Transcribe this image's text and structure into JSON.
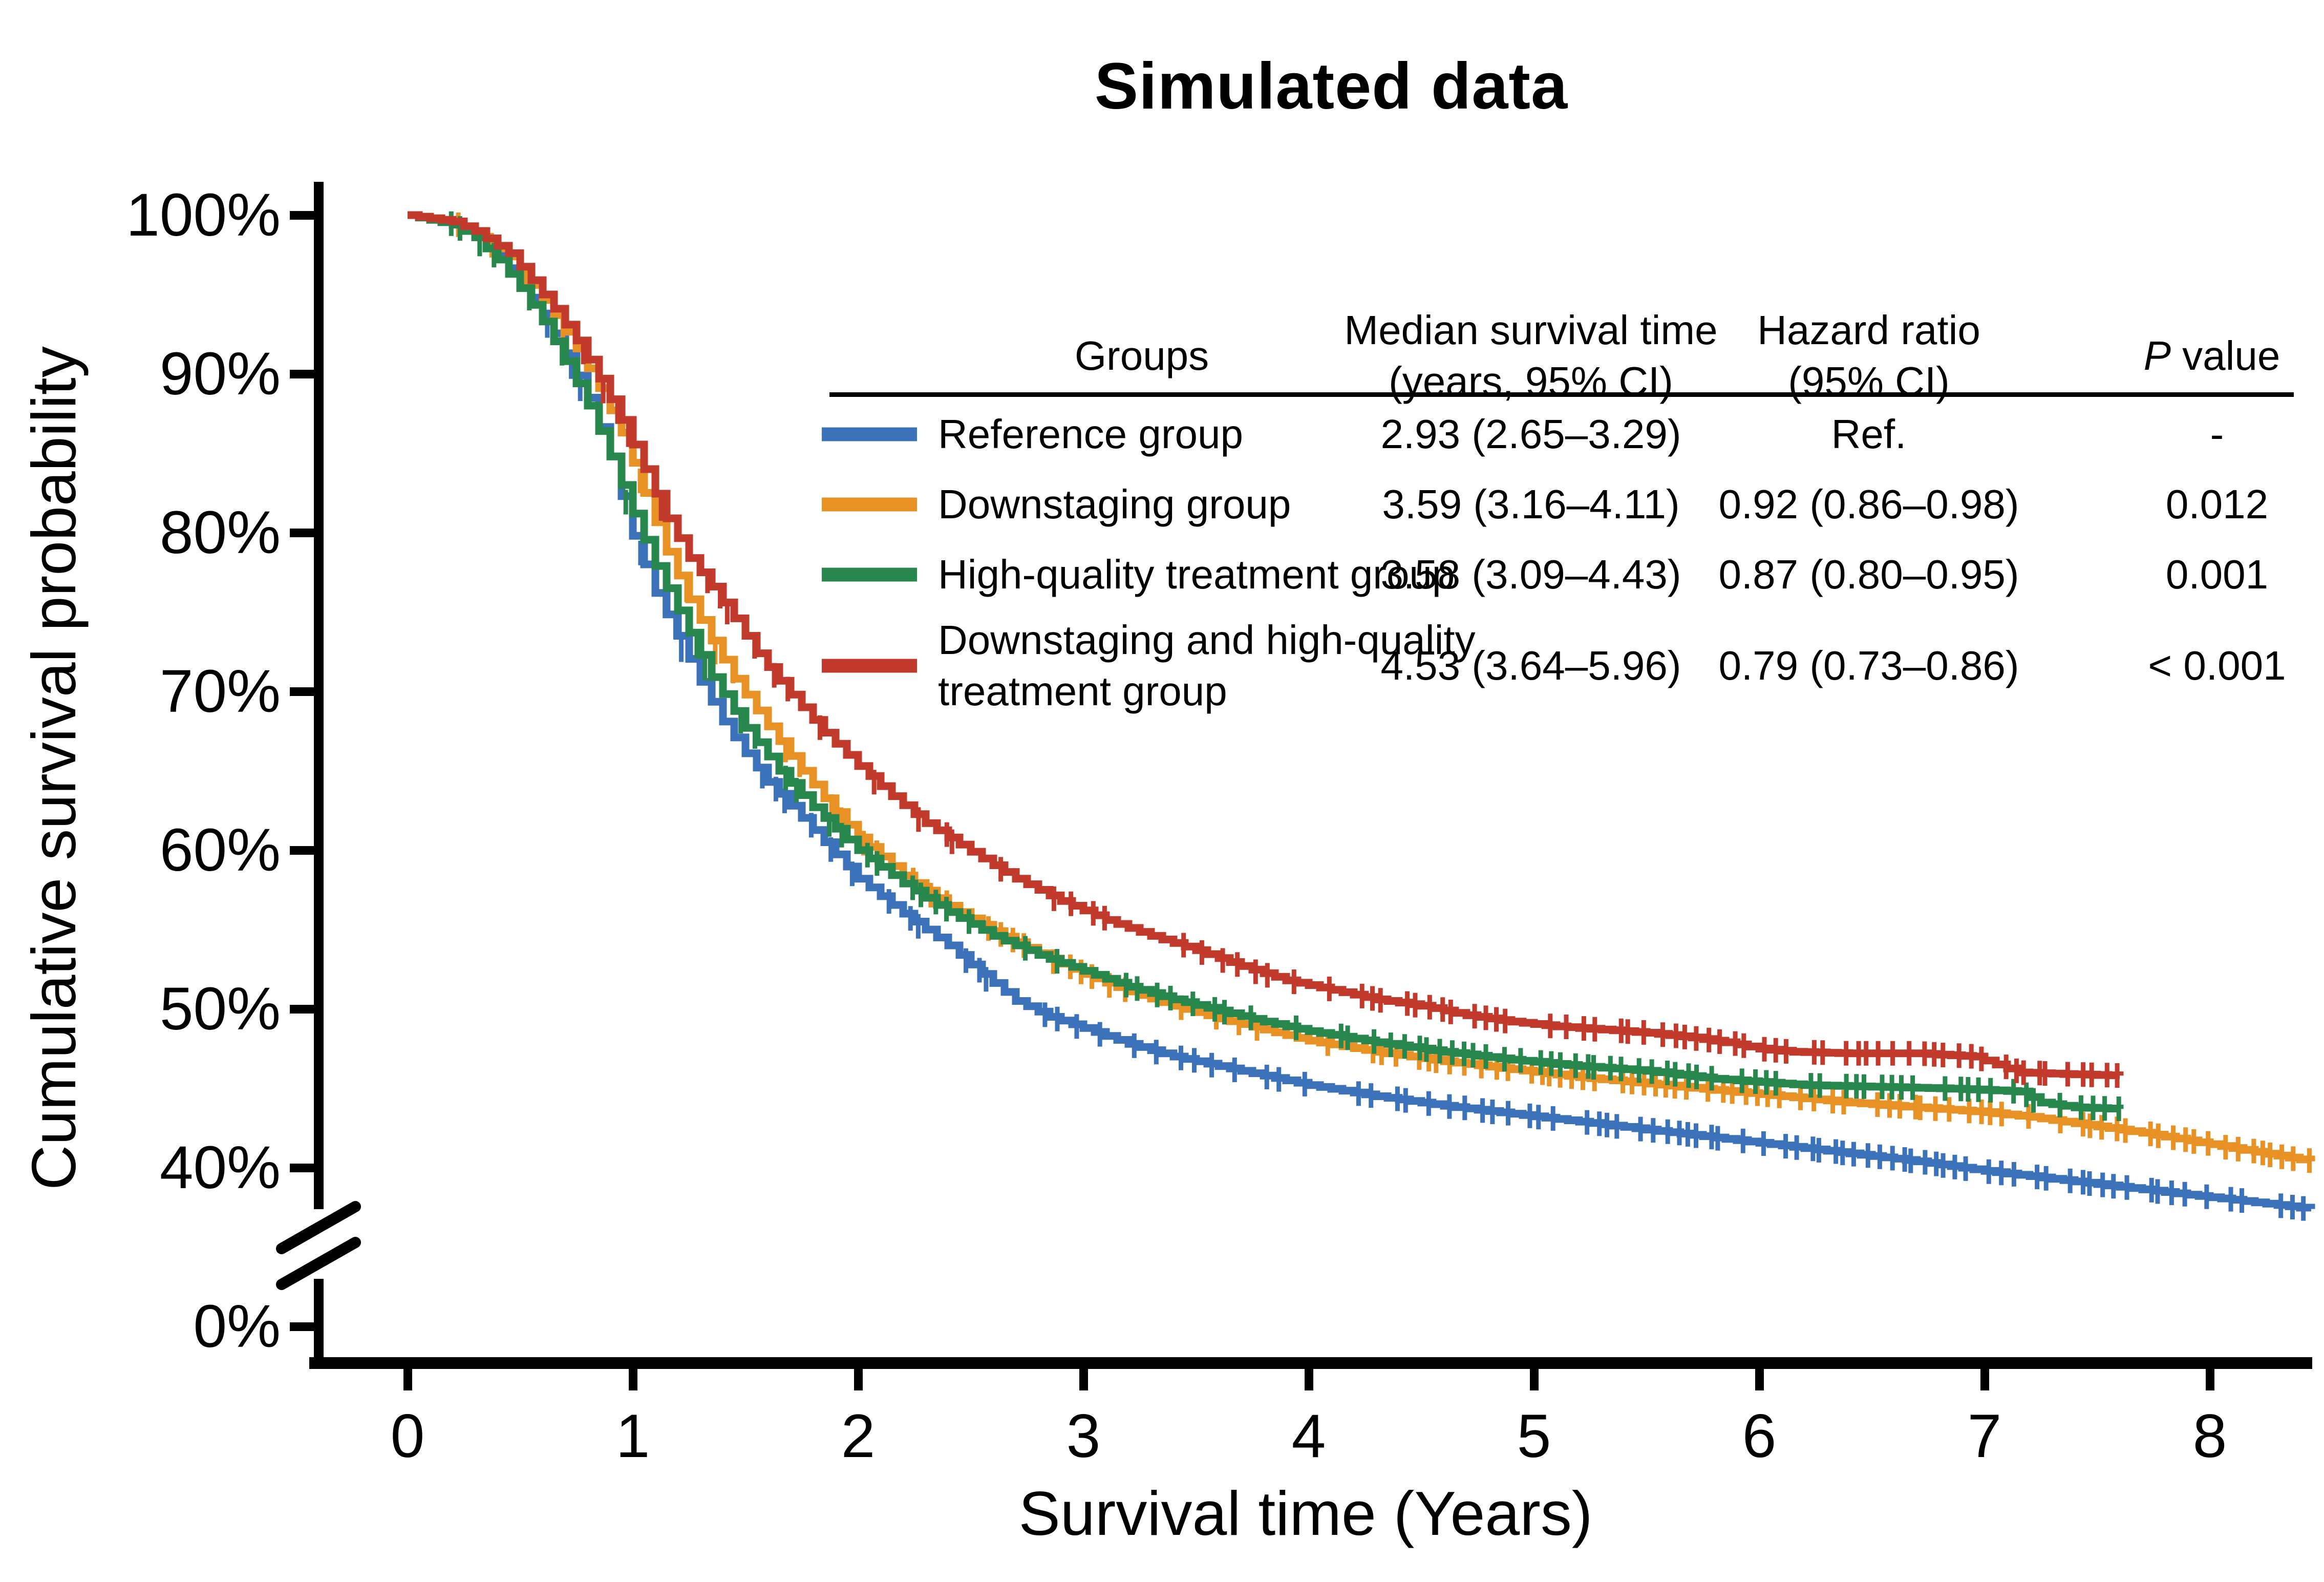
{
  "title": "Simulated data",
  "axes": {
    "x_label": "Survival time (Years)",
    "y_label": "Cumulative survival probability",
    "x_tick_labels": [
      "0",
      "1",
      "2",
      "3",
      "4",
      "5",
      "6",
      "7",
      "8"
    ],
    "y_tick_labels": [
      "100%",
      "90%",
      "80%",
      "70%",
      "60%",
      "50%",
      "40%"
    ],
    "y_zero_label": "0%"
  },
  "table": {
    "headers": {
      "groups": "Groups",
      "median_line1": "Median survival time",
      "median_line2": "(years, 95% CI)",
      "hazard_line1": "Hazard ratio",
      "hazard_line2": "(95% CI)",
      "p_italic": "P",
      "p_rest": " value"
    },
    "rows": [
      {
        "group": "Reference group",
        "median": "2.93 (2.65–3.29)",
        "hazard": "Ref.",
        "p": "-",
        "color": "#3B72B9"
      },
      {
        "group": "Downstaging group",
        "median": "3.59 (3.16–4.11)",
        "hazard": "0.92 (0.86–0.98)",
        "p": "0.012",
        "color": "#E89125"
      },
      {
        "group": "High-quality treatment group",
        "median": "3.58 (3.09–4.43)",
        "hazard": "0.87 (0.80–0.95)",
        "p": "0.001",
        "color": "#27874D"
      },
      {
        "group": "Downstaging and high-quality treatment group",
        "median": "4.53 (3.64–5.96)",
        "hazard": "0.79 (0.73–0.86)",
        "p": "< 0.001",
        "color": "#C13A2B"
      }
    ]
  },
  "chart_data": {
    "type": "line",
    "subtype": "kaplan_meier_step",
    "title": "Simulated data",
    "xlabel": "Survival time (Years)",
    "ylabel": "Cumulative survival probability",
    "xlim": [
      0,
      8.5
    ],
    "ylim": [
      0,
      100
    ],
    "y_axis_break_between": [
      0,
      37
    ],
    "grid": false,
    "legend_position": "table-top-right",
    "censor_marks": true,
    "x_ticks": [
      0,
      1,
      2,
      3,
      4,
      5,
      6,
      7,
      8
    ],
    "y_ticks_pct": [
      100,
      90,
      80,
      70,
      60,
      50,
      40,
      0
    ],
    "series": [
      {
        "name": "Reference group",
        "color": "#3B72B9",
        "median_years": "2.93 (2.65–3.29)",
        "hazard_ratio": "Ref.",
        "p_value": "-",
        "points": [
          [
            0,
            100
          ],
          [
            0.2,
            99.5
          ],
          [
            0.3,
            98.8
          ],
          [
            0.4,
            97.5
          ],
          [
            0.5,
            95.8
          ],
          [
            0.6,
            93.8
          ],
          [
            0.7,
            91.3
          ],
          [
            0.8,
            88.5
          ],
          [
            0.9,
            84.8
          ],
          [
            1.0,
            79.8
          ],
          [
            1.1,
            76.2
          ],
          [
            1.2,
            73.5
          ],
          [
            1.3,
            70.6
          ],
          [
            1.4,
            68.1
          ],
          [
            1.5,
            66.1
          ],
          [
            1.6,
            64.3
          ],
          [
            1.7,
            62.8
          ],
          [
            1.85,
            60.5
          ],
          [
            2.0,
            58.2
          ],
          [
            2.2,
            56.0
          ],
          [
            2.4,
            54.0
          ],
          [
            2.55,
            52.2
          ],
          [
            2.7,
            50.5
          ],
          [
            2.85,
            49.5
          ],
          [
            3.0,
            48.8
          ],
          [
            3.2,
            47.8
          ],
          [
            3.4,
            47.0
          ],
          [
            3.6,
            46.4
          ],
          [
            3.8,
            45.8
          ],
          [
            4.0,
            45.2
          ],
          [
            4.3,
            44.5
          ],
          [
            4.6,
            43.9
          ],
          [
            4.9,
            43.4
          ],
          [
            5.2,
            42.9
          ],
          [
            5.5,
            42.4
          ],
          [
            5.8,
            41.9
          ],
          [
            6.1,
            41.4
          ],
          [
            6.4,
            40.9
          ],
          [
            6.7,
            40.4
          ],
          [
            7.0,
            39.8
          ],
          [
            7.3,
            39.3
          ],
          [
            7.6,
            38.8
          ],
          [
            7.9,
            38.3
          ],
          [
            8.15,
            37.9
          ],
          [
            8.45,
            37.4
          ]
        ]
      },
      {
        "name": "Downstaging group",
        "color": "#E89125",
        "median_years": "3.59 (3.16–4.11)",
        "hazard_ratio": "0.92 (0.86–0.98)",
        "p_value": "0.012",
        "points": [
          [
            0,
            100
          ],
          [
            0.2,
            99.6
          ],
          [
            0.3,
            98.9
          ],
          [
            0.45,
            97.4
          ],
          [
            0.55,
            95.6
          ],
          [
            0.65,
            93.7
          ],
          [
            0.75,
            91.6
          ],
          [
            0.85,
            89.1
          ],
          [
            0.95,
            86.3
          ],
          [
            1.05,
            82.5
          ],
          [
            1.15,
            78.8
          ],
          [
            1.25,
            75.8
          ],
          [
            1.35,
            73.2
          ],
          [
            1.45,
            70.8
          ],
          [
            1.6,
            67.8
          ],
          [
            1.75,
            65.0
          ],
          [
            1.9,
            62.4
          ],
          [
            2.0,
            60.8
          ],
          [
            2.2,
            58.4
          ],
          [
            2.4,
            56.5
          ],
          [
            2.6,
            54.9
          ],
          [
            2.8,
            53.5
          ],
          [
            3.0,
            52.2
          ],
          [
            3.2,
            51.1
          ],
          [
            3.4,
            50.2
          ],
          [
            3.6,
            49.4
          ],
          [
            3.8,
            48.7
          ],
          [
            4.0,
            48.0
          ],
          [
            4.3,
            47.3
          ],
          [
            4.6,
            46.7
          ],
          [
            4.9,
            46.2
          ],
          [
            5.2,
            45.7
          ],
          [
            5.5,
            45.3
          ],
          [
            5.8,
            44.9
          ],
          [
            6.1,
            44.5
          ],
          [
            6.4,
            44.1
          ],
          [
            6.7,
            43.8
          ],
          [
            7.0,
            43.5
          ],
          [
            7.2,
            43.2
          ],
          [
            7.45,
            42.7
          ],
          [
            7.7,
            42.2
          ],
          [
            7.95,
            41.6
          ],
          [
            8.2,
            41.0
          ],
          [
            8.45,
            40.4
          ]
        ]
      },
      {
        "name": "High-quality treatment group",
        "color": "#27874D",
        "median_years": "3.58 (3.09–4.43)",
        "hazard_ratio": "0.87 (0.80–0.95)",
        "p_value": "0.001",
        "points": [
          [
            0,
            100
          ],
          [
            0.2,
            99.4
          ],
          [
            0.3,
            98.6
          ],
          [
            0.4,
            97.2
          ],
          [
            0.5,
            95.4
          ],
          [
            0.6,
            93.3
          ],
          [
            0.7,
            90.8
          ],
          [
            0.8,
            88.0
          ],
          [
            0.9,
            84.8
          ],
          [
            1.0,
            81.2
          ],
          [
            1.1,
            77.9
          ],
          [
            1.2,
            75.1
          ],
          [
            1.35,
            70.9
          ],
          [
            1.5,
            67.7
          ],
          [
            1.65,
            65.0
          ],
          [
            1.8,
            62.7
          ],
          [
            2.0,
            60.0
          ],
          [
            2.2,
            57.9
          ],
          [
            2.4,
            56.1
          ],
          [
            2.6,
            54.6
          ],
          [
            2.8,
            53.4
          ],
          [
            3.0,
            52.4
          ],
          [
            3.2,
            51.4
          ],
          [
            3.4,
            50.6
          ],
          [
            3.6,
            49.9
          ],
          [
            3.8,
            49.2
          ],
          [
            4.0,
            48.6
          ],
          [
            4.3,
            47.9
          ],
          [
            4.6,
            47.3
          ],
          [
            4.9,
            46.8
          ],
          [
            5.2,
            46.4
          ],
          [
            5.5,
            46.1
          ],
          [
            5.8,
            45.6
          ],
          [
            6.0,
            45.4
          ],
          [
            6.2,
            45.2
          ],
          [
            6.5,
            45.1
          ],
          [
            6.8,
            45.0
          ],
          [
            7.0,
            44.9
          ],
          [
            7.15,
            44.8
          ],
          [
            7.25,
            44.1
          ],
          [
            7.4,
            43.8
          ],
          [
            7.6,
            43.7
          ]
        ]
      },
      {
        "name": "Downstaging and high-quality treatment group",
        "color": "#C13A2B",
        "median_years": "4.53 (3.64–5.96)",
        "hazard_ratio": "0.79 (0.73–0.86)",
        "p_value": "< 0.001",
        "points": [
          [
            0,
            100
          ],
          [
            0.2,
            99.6
          ],
          [
            0.3,
            99.0
          ],
          [
            0.45,
            97.6
          ],
          [
            0.55,
            95.9
          ],
          [
            0.65,
            94.1
          ],
          [
            0.75,
            92.1
          ],
          [
            0.85,
            89.7
          ],
          [
            0.95,
            87.1
          ],
          [
            1.05,
            84.0
          ],
          [
            1.15,
            80.9
          ],
          [
            1.25,
            78.4
          ],
          [
            1.35,
            76.6
          ],
          [
            1.45,
            74.6
          ],
          [
            1.55,
            72.4
          ],
          [
            1.7,
            69.8
          ],
          [
            1.85,
            67.4
          ],
          [
            2.0,
            65.3
          ],
          [
            2.15,
            63.4
          ],
          [
            2.3,
            61.7
          ],
          [
            2.5,
            59.9
          ],
          [
            2.7,
            58.2
          ],
          [
            2.9,
            56.8
          ],
          [
            3.1,
            55.6
          ],
          [
            3.3,
            54.6
          ],
          [
            3.5,
            53.7
          ],
          [
            3.7,
            52.7
          ],
          [
            3.9,
            51.8
          ],
          [
            4.1,
            51.2
          ],
          [
            4.3,
            50.6
          ],
          [
            4.5,
            50.2
          ],
          [
            4.7,
            49.6
          ],
          [
            4.9,
            49.2
          ],
          [
            5.1,
            48.9
          ],
          [
            5.3,
            48.7
          ],
          [
            5.5,
            48.5
          ],
          [
            5.7,
            48.2
          ],
          [
            5.85,
            47.9
          ],
          [
            6.0,
            47.5
          ],
          [
            6.15,
            47.3
          ],
          [
            6.4,
            47.2
          ],
          [
            6.7,
            47.2
          ],
          [
            6.95,
            47.0
          ],
          [
            7.05,
            46.5
          ],
          [
            7.15,
            46.0
          ],
          [
            7.35,
            45.9
          ],
          [
            7.6,
            45.8
          ]
        ]
      }
    ]
  }
}
